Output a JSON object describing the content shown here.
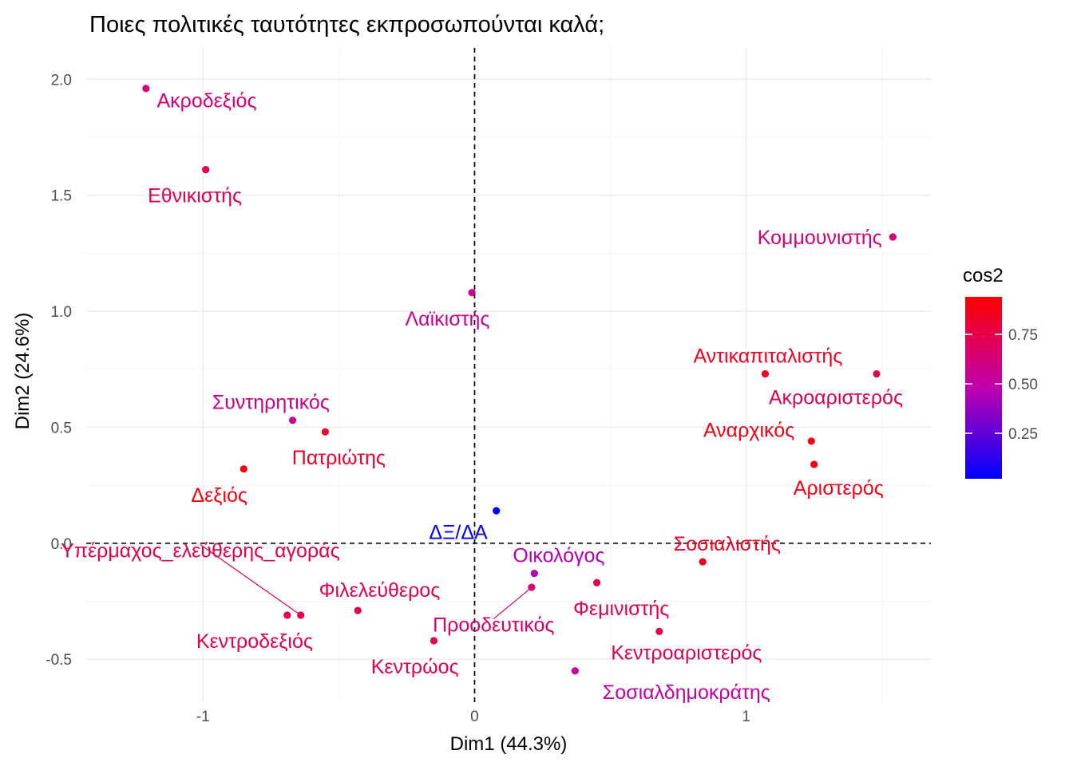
{
  "chart_data": {
    "type": "scatter",
    "title": "Ποιες πολιτικές ταυτότητες εκπροσωπούνται καλά;",
    "xlabel": "Dim1 (44.3%)",
    "ylabel": "Dim2 (24.6%)",
    "xlim": [
      -1.43,
      1.68
    ],
    "ylim": [
      -0.685,
      2.135
    ],
    "x_ticks": [
      -1,
      0,
      1
    ],
    "x_tick_labels": [
      "-1",
      "0",
      "1"
    ],
    "y_ticks": [
      -0.5,
      0.0,
      0.5,
      1.0,
      1.5,
      2.0
    ],
    "y_tick_labels": [
      "-0.5",
      "0.0",
      "0.5",
      "1.0",
      "1.5",
      "2.0"
    ],
    "grid": true,
    "reference_lines": {
      "x": 0,
      "y": 0,
      "style": "dashed"
    },
    "points": [
      {
        "label": "Ακροδεξιός",
        "x": -1.21,
        "y": 1.96,
        "cos2": 0.62,
        "label_anchor": "start",
        "label_dx": 0.04,
        "label_dy": -0.05
      },
      {
        "label": "Εθνικιστής",
        "x": -0.99,
        "y": 1.61,
        "cos2": 0.72,
        "label_anchor": "middle",
        "label_dx": -0.04,
        "label_dy": -0.11
      },
      {
        "label": "Κομμουνιστής",
        "x": 1.54,
        "y": 1.32,
        "cos2": 0.62,
        "label_anchor": "end",
        "label_dx": -0.04,
        "label_dy": 0.0
      },
      {
        "label": "Λαϊκιστής",
        "x": -0.01,
        "y": 1.08,
        "cos2": 0.55,
        "label_anchor": "middle",
        "label_dx": -0.09,
        "label_dy": -0.11
      },
      {
        "label": "Αντικαπιταλιστής",
        "x": 1.07,
        "y": 0.73,
        "cos2": 0.85,
        "label_anchor": "middle",
        "label_dx": 0.01,
        "label_dy": 0.08
      },
      {
        "label": "Ακροαριστερός",
        "x": 1.48,
        "y": 0.73,
        "cos2": 0.72,
        "label_anchor": "middle",
        "label_dx": -0.15,
        "label_dy": -0.1
      },
      {
        "label": "Συντηρητικός",
        "x": -0.67,
        "y": 0.53,
        "cos2": 0.58,
        "label_anchor": "middle",
        "label_dx": -0.08,
        "label_dy": 0.08
      },
      {
        "label": "Πατριώτης",
        "x": -0.55,
        "y": 0.48,
        "cos2": 0.82,
        "label_anchor": "middle",
        "label_dx": 0.05,
        "label_dy": -0.11
      },
      {
        "label": "Αναρχικός",
        "x": 1.24,
        "y": 0.44,
        "cos2": 0.88,
        "label_anchor": "middle",
        "label_dx": -0.23,
        "label_dy": 0.05
      },
      {
        "label": "Αριστερός",
        "x": 1.25,
        "y": 0.34,
        "cos2": 0.88,
        "label_anchor": "middle",
        "label_dx": 0.09,
        "label_dy": -0.1
      },
      {
        "label": "Δεξιός",
        "x": -0.85,
        "y": 0.32,
        "cos2": 0.9,
        "label_anchor": "middle",
        "label_dx": -0.09,
        "label_dy": -0.11
      },
      {
        "label": "ΔΞ/ΔΑ",
        "x": 0.08,
        "y": 0.14,
        "cos2": 0.02,
        "label_anchor": "middle",
        "label_dx": -0.14,
        "label_dy": -0.09
      },
      {
        "label": "Σοσιαλιστής",
        "x": 0.84,
        "y": -0.08,
        "cos2": 0.85,
        "label_anchor": "middle",
        "label_dx": 0.09,
        "label_dy": 0.08
      },
      {
        "label": "Οικολόγος",
        "x": 0.22,
        "y": -0.13,
        "cos2": 0.45,
        "label_anchor": "middle",
        "label_dx": 0.09,
        "label_dy": 0.08
      },
      {
        "label": "Υπέρμαχος_ελεύθερης_αγοράς",
        "x": -0.64,
        "y": -0.31,
        "cos2": 0.75,
        "label_anchor": "middle",
        "label_dx": -0.37,
        "label_dy": 0.28,
        "leader_line": true
      },
      {
        "label": "Προοδευτικός",
        "x": 0.21,
        "y": -0.19,
        "cos2": 0.65,
        "label_anchor": "middle",
        "label_dx": -0.14,
        "label_dy": -0.16,
        "leader_line": true
      },
      {
        "label": "Φεμινιστής",
        "x": 0.45,
        "y": -0.17,
        "cos2": 0.75,
        "label_anchor": "middle",
        "label_dx": 0.09,
        "label_dy": -0.11
      },
      {
        "label": "Φιλελεύθερος",
        "x": -0.43,
        "y": -0.29,
        "cos2": 0.72,
        "label_anchor": "middle",
        "label_dx": 0.08,
        "label_dy": 0.09
      },
      {
        "label": "Κεντροδεξιός",
        "x": -0.69,
        "y": -0.31,
        "cos2": 0.75,
        "label_anchor": "middle",
        "label_dx": -0.12,
        "label_dy": -0.11
      },
      {
        "label": "Κεντροαριστερός",
        "x": 0.68,
        "y": -0.38,
        "cos2": 0.72,
        "label_anchor": "middle",
        "label_dx": 0.1,
        "label_dy": -0.09
      },
      {
        "label": "Κεντρώος",
        "x": -0.15,
        "y": -0.42,
        "cos2": 0.75,
        "label_anchor": "middle",
        "label_dx": -0.07,
        "label_dy": -0.11
      },
      {
        "label": "Σοσιαλδημοκράτης",
        "x": 0.37,
        "y": -0.55,
        "cos2": 0.5,
        "label_anchor": "middle",
        "label_dx": 0.41,
        "label_dy": -0.09
      }
    ],
    "legend": {
      "title": "cos2",
      "placement": "right",
      "ticks": [
        0.25,
        0.5,
        0.75
      ],
      "tick_labels": [
        "0.25",
        "0.50",
        "0.75"
      ],
      "range": [
        0.02,
        0.94
      ],
      "color_low": "#0000ff",
      "color_mid": "#c000b0",
      "color_high": "#ff0000"
    }
  }
}
